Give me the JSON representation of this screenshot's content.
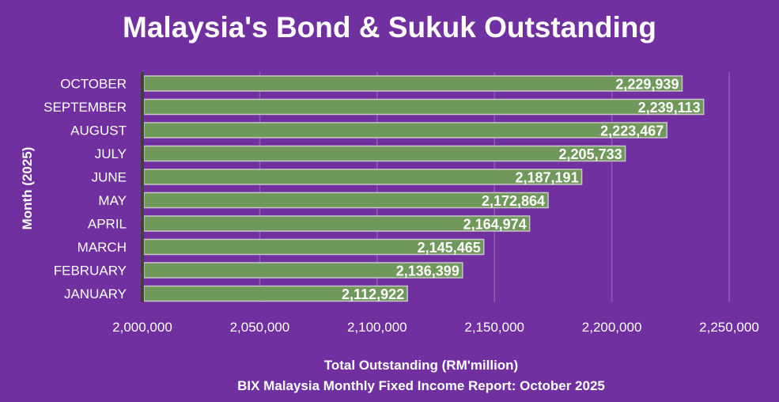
{
  "chart_data": {
    "type": "bar",
    "orientation": "horizontal",
    "title": "Malaysia's Bond & Sukuk Outstanding",
    "xlabel": "Total Outstanding (RM'million)",
    "ylabel": "Month (2025)",
    "source": "BIX Malaysia Monthly Fixed Income Report: October 2025",
    "categories": [
      "JANUARY",
      "FEBRUARY",
      "MARCH",
      "APRIL",
      "MAY",
      "JUNE",
      "JULY",
      "AUGUST",
      "SEPTEMBER",
      "OCTOBER"
    ],
    "values": [
      2112922,
      2136399,
      2145465,
      2164974,
      2172864,
      2187191,
      2205733,
      2223467,
      2239113,
      2229939
    ],
    "data_labels": [
      "2,112,922",
      "2,136,399",
      "2,145,465",
      "2,164,974",
      "2,172,864",
      "2,187,191",
      "2,205,733",
      "2,223,467",
      "2,239,113",
      "2,229,939"
    ],
    "xlim": [
      2000000,
      2250000
    ],
    "xticks": [
      2000000,
      2050000,
      2100000,
      2150000,
      2200000,
      2250000
    ],
    "xtick_labels": [
      "2,000,000",
      "2,050,000",
      "2,100,000",
      "2,150,000",
      "2,200,000",
      "2,250,000"
    ],
    "grid": "vertical",
    "legend": "none",
    "colors": {
      "background": "#7030A0",
      "bar": "#70985A",
      "bar_border": "#C8C8C8",
      "axis": "#404040"
    }
  }
}
